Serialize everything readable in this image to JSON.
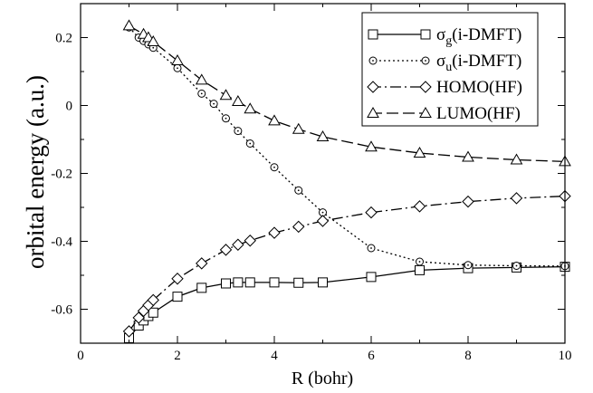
{
  "chart_data": {
    "type": "line",
    "xlabel": "R (bohr)",
    "ylabel": "orbital energy (a.u.)",
    "xlim": [
      0,
      10
    ],
    "ylim": [
      -0.7,
      0.3
    ],
    "xticks": [
      0,
      2,
      4,
      6,
      8,
      10
    ],
    "yticks": [
      0.2,
      0,
      -0.2,
      -0.4,
      -0.6
    ],
    "xtick_labels": [
      "0",
      "2",
      "4",
      "6",
      "8",
      "10"
    ],
    "ytick_labels": [
      "0.2",
      "0",
      "-0.2",
      "-0.4",
      "-0.6"
    ],
    "grid": false,
    "legend": "top-right",
    "series": [
      {
        "name_main": "σ",
        "name_sub": "g",
        "name_rest": "(i-DMFT)",
        "marker": "square",
        "dash": "",
        "x": [
          1.0,
          1.2,
          1.3,
          1.4,
          1.5,
          2.0,
          2.5,
          3.0,
          3.25,
          3.5,
          4.0,
          4.5,
          5.0,
          6.0,
          7.0,
          8.0,
          9.0,
          10.0
        ],
        "y": [
          -0.685,
          -0.648,
          -0.633,
          -0.62,
          -0.61,
          -0.563,
          -0.537,
          -0.524,
          -0.521,
          -0.521,
          -0.521,
          -0.522,
          -0.521,
          -0.505,
          -0.485,
          -0.479,
          -0.477,
          -0.475
        ]
      },
      {
        "name_main": "σ",
        "name_sub": "u",
        "name_rest": "(i-DMFT)",
        "marker": "circle",
        "dash": "2,3",
        "x": [
          1.0,
          1.2,
          1.3,
          1.4,
          1.5,
          2.0,
          2.5,
          2.75,
          3.0,
          3.25,
          3.5,
          4.0,
          4.5,
          5.0,
          6.0,
          7.0,
          8.0,
          9.0,
          10.0
        ],
        "y": [
          0.23,
          0.2,
          0.19,
          0.18,
          0.17,
          0.11,
          0.035,
          0.005,
          -0.038,
          -0.075,
          -0.112,
          -0.182,
          -0.25,
          -0.315,
          -0.42,
          -0.46,
          -0.47,
          -0.472,
          -0.473
        ]
      },
      {
        "name_main": "HOMO(HF)",
        "name_sub": "",
        "name_rest": "",
        "marker": "diamond",
        "dash": "12,4,2,4",
        "x": [
          1.0,
          1.2,
          1.3,
          1.4,
          1.5,
          2.0,
          2.5,
          3.0,
          3.25,
          3.5,
          4.0,
          4.5,
          5.0,
          6.0,
          7.0,
          8.0,
          9.0,
          10.0
        ],
        "y": [
          -0.665,
          -0.625,
          -0.605,
          -0.588,
          -0.573,
          -0.51,
          -0.465,
          -0.425,
          -0.41,
          -0.398,
          -0.375,
          -0.357,
          -0.34,
          -0.315,
          -0.297,
          -0.283,
          -0.273,
          -0.267
        ]
      },
      {
        "name_main": "LUMO(HF)",
        "name_sub": "",
        "name_rest": "",
        "marker": "triangle",
        "dash": "13,5",
        "x": [
          1.0,
          1.3,
          1.4,
          1.5,
          2.0,
          2.5,
          3.0,
          3.25,
          3.5,
          4.0,
          4.5,
          5.0,
          6.0,
          7.0,
          8.0,
          9.0,
          10.0
        ],
        "y": [
          0.235,
          0.21,
          0.2,
          0.188,
          0.132,
          0.075,
          0.03,
          0.012,
          -0.01,
          -0.045,
          -0.07,
          -0.092,
          -0.122,
          -0.14,
          -0.152,
          -0.16,
          -0.165
        ]
      }
    ]
  }
}
